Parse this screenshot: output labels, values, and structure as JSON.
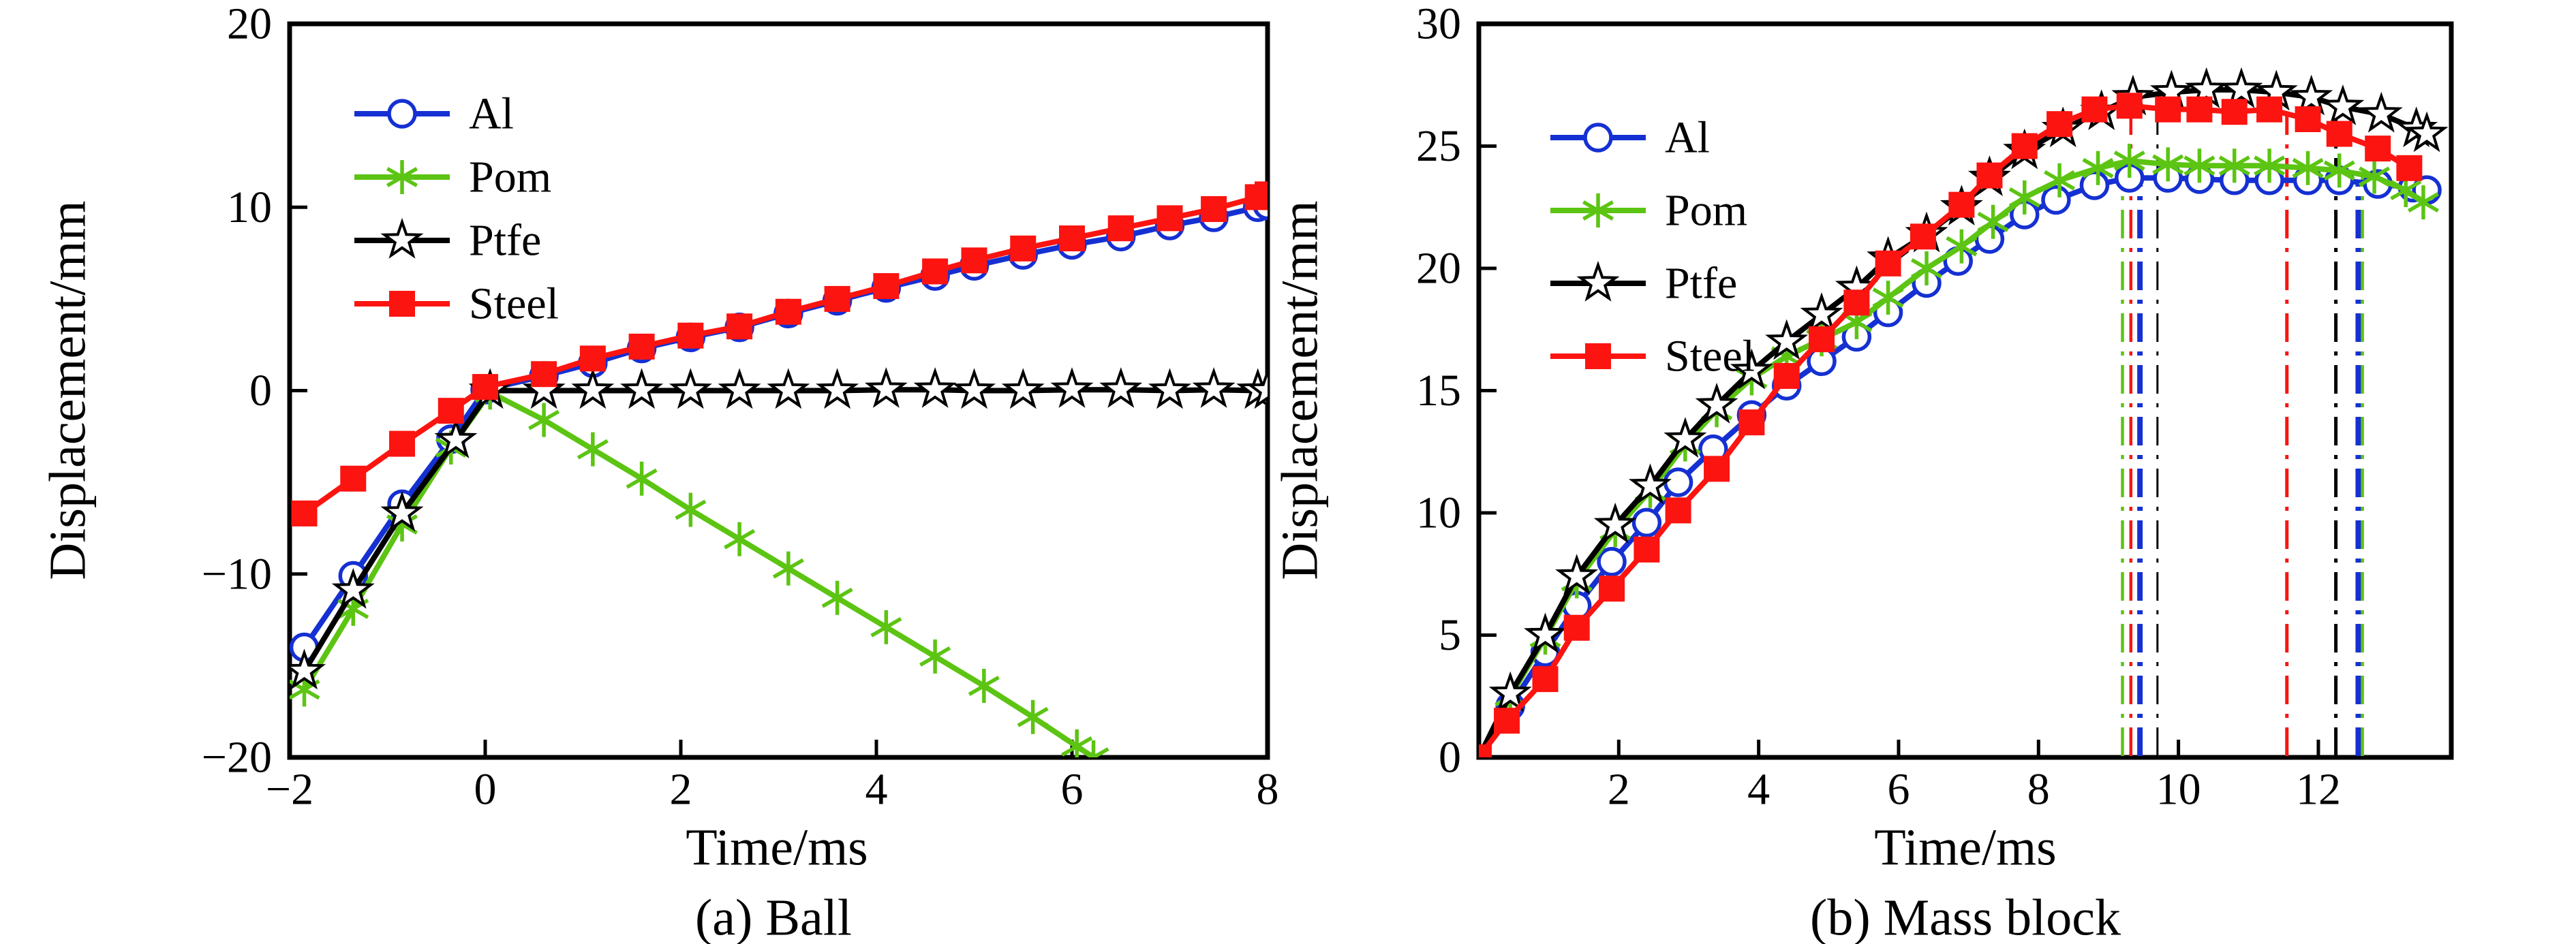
{
  "figure": {
    "panel_a": {
      "caption": "(a) Ball",
      "xlabel": "Time/ms",
      "ylabel": "Displacement/mm"
    },
    "panel_b": {
      "caption": "(b) Mass block",
      "xlabel": "Time/ms",
      "ylabel": "Displacement/mm"
    }
  },
  "colors": {
    "al": "#1530d2",
    "pom": "#5cc412",
    "ptfe": "#000000",
    "steel": "#fb1410"
  },
  "chart_data": [
    {
      "id": "ball",
      "type": "line",
      "title": "(a) Ball",
      "xlabel": "Time/ms",
      "ylabel": "Displacement/mm",
      "xlim": [
        -2,
        8
      ],
      "ylim": [
        -20,
        20
      ],
      "xticks": [
        -2,
        0,
        2,
        4,
        6,
        8
      ],
      "yticks": [
        -20,
        -10,
        0,
        10,
        20
      ],
      "grid": false,
      "legend_position": "upper-left",
      "series": [
        {
          "name": "Al",
          "color": "#1530d2",
          "marker": "circle-open",
          "points": [
            [
              -1.85,
              -14
            ],
            [
              -1.35,
              -10.1
            ],
            [
              -0.85,
              -6.2
            ],
            [
              -0.35,
              -2.65
            ],
            [
              0,
              0.05
            ],
            [
              0.6,
              0.8
            ],
            [
              1.1,
              1.5
            ],
            [
              1.6,
              2.3
            ],
            [
              2.1,
              2.9
            ],
            [
              2.6,
              3.45
            ],
            [
              3.1,
              4.2
            ],
            [
              3.6,
              4.9
            ],
            [
              4.1,
              5.6
            ],
            [
              4.6,
              6.25
            ],
            [
              5,
              6.8
            ],
            [
              5.5,
              7.4
            ],
            [
              6,
              7.95
            ],
            [
              6.5,
              8.4
            ],
            [
              7,
              9
            ],
            [
              7.45,
              9.45
            ],
            [
              7.9,
              10
            ],
            [
              8,
              10.1
            ]
          ]
        },
        {
          "name": "Pom",
          "color": "#5cc412",
          "marker": "asterisk",
          "points": [
            [
              -1.85,
              -16.3
            ],
            [
              -1.35,
              -11.9
            ],
            [
              -0.85,
              -7.3
            ],
            [
              -0.35,
              -3.1
            ],
            [
              0.05,
              -0.1
            ],
            [
              0.6,
              -1.6
            ],
            [
              1.1,
              -3.2
            ],
            [
              1.6,
              -4.8
            ],
            [
              2.1,
              -6.5
            ],
            [
              2.6,
              -8.1
            ],
            [
              3.1,
              -9.7
            ],
            [
              3.6,
              -11.3
            ],
            [
              4.1,
              -12.9
            ],
            [
              4.6,
              -14.5
            ],
            [
              5.1,
              -16.1
            ],
            [
              5.6,
              -17.8
            ],
            [
              6.05,
              -19.4
            ],
            [
              6.22,
              -20
            ]
          ]
        },
        {
          "name": "Ptfe",
          "color": "#000000",
          "marker": "star-open",
          "points": [
            [
              -1.85,
              -15.3
            ],
            [
              -1.35,
              -10.9
            ],
            [
              -0.85,
              -6.7
            ],
            [
              -0.3,
              -2.7
            ],
            [
              0.05,
              0
            ],
            [
              0.6,
              0
            ],
            [
              1.1,
              0
            ],
            [
              1.6,
              0
            ],
            [
              2.1,
              0
            ],
            [
              2.6,
              0
            ],
            [
              3.1,
              0
            ],
            [
              3.6,
              0
            ],
            [
              4.1,
              0.05
            ],
            [
              4.6,
              0.05
            ],
            [
              5,
              0
            ],
            [
              5.5,
              0
            ],
            [
              6,
              0.05
            ],
            [
              6.5,
              0.05
            ],
            [
              7,
              0
            ],
            [
              7.45,
              0.05
            ],
            [
              7.9,
              0
            ],
            [
              8,
              0
            ]
          ]
        },
        {
          "name": "Steel",
          "color": "#fb1410",
          "marker": "square-filled",
          "points": [
            [
              -1.85,
              -6.7
            ],
            [
              -1.35,
              -4.8
            ],
            [
              -0.85,
              -2.9
            ],
            [
              -0.35,
              -1.1
            ],
            [
              0,
              0.2
            ],
            [
              0.6,
              0.9
            ],
            [
              1.1,
              1.75
            ],
            [
              1.6,
              2.4
            ],
            [
              2.1,
              3
            ],
            [
              2.6,
              3.5
            ],
            [
              3.1,
              4.3
            ],
            [
              3.6,
              5
            ],
            [
              4.1,
              5.7
            ],
            [
              4.6,
              6.5
            ],
            [
              5,
              7.1
            ],
            [
              5.5,
              7.75
            ],
            [
              6,
              8.3
            ],
            [
              6.5,
              8.85
            ],
            [
              7,
              9.4
            ],
            [
              7.45,
              9.9
            ],
            [
              7.9,
              10.55
            ],
            [
              8,
              10.7
            ]
          ]
        }
      ]
    },
    {
      "id": "mass-block",
      "type": "line",
      "title": "(b) Mass block",
      "xlabel": "Time/ms",
      "ylabel": "Displacement/mm",
      "xlim": [
        0,
        13.9
      ],
      "ylim": [
        0,
        30
      ],
      "xticks": [
        2,
        4,
        6,
        8,
        10,
        12
      ],
      "yticks": [
        0,
        5,
        10,
        15,
        20,
        25,
        30
      ],
      "grid": false,
      "legend_position": "upper-left",
      "series": [
        {
          "name": "Al",
          "color": "#1530d2",
          "marker": "circle-open",
          "skip_first_marker": true,
          "points": [
            [
              0,
              0
            ],
            [
              0.45,
              2.1
            ],
            [
              0.95,
              4.3
            ],
            [
              1.4,
              6.2
            ],
            [
              1.9,
              8
            ],
            [
              2.4,
              9.6
            ],
            [
              2.85,
              11.25
            ],
            [
              3.35,
              12.6
            ],
            [
              3.9,
              14
            ],
            [
              4.4,
              15.2
            ],
            [
              4.9,
              16.2
            ],
            [
              5.4,
              17.2
            ],
            [
              5.85,
              18.2
            ],
            [
              6.4,
              19.4
            ],
            [
              6.85,
              20.3
            ],
            [
              7.3,
              21.2
            ],
            [
              7.8,
              22.2
            ],
            [
              8.25,
              22.8
            ],
            [
              8.8,
              23.4
            ],
            [
              9.3,
              23.7
            ],
            [
              9.85,
              23.7
            ],
            [
              10.3,
              23.65
            ],
            [
              10.8,
              23.6
            ],
            [
              11.3,
              23.6
            ],
            [
              11.85,
              23.6
            ],
            [
              12.3,
              23.6
            ],
            [
              12.85,
              23.45
            ],
            [
              13.35,
              23.3
            ],
            [
              13.55,
              23.2
            ]
          ]
        },
        {
          "name": "Pom",
          "color": "#5cc412",
          "marker": "asterisk",
          "skip_first_marker": true,
          "points": [
            [
              0,
              0
            ],
            [
              0.45,
              2.5
            ],
            [
              0.95,
              4.9
            ],
            [
              1.4,
              7.2
            ],
            [
              1.95,
              9.3
            ],
            [
              2.45,
              10.9
            ],
            [
              2.95,
              12.8
            ],
            [
              3.4,
              14.2
            ],
            [
              3.9,
              15.5
            ],
            [
              4.4,
              16.4
            ],
            [
              4.9,
              17.1
            ],
            [
              5.4,
              17.8
            ],
            [
              5.85,
              18.8
            ],
            [
              6.4,
              20
            ],
            [
              6.9,
              20.9
            ],
            [
              7.35,
              21.9
            ],
            [
              7.8,
              22.9
            ],
            [
              8.3,
              23.6
            ],
            [
              8.85,
              24.1
            ],
            [
              9.3,
              24.4
            ],
            [
              9.85,
              24.25
            ],
            [
              10.3,
              24.2
            ],
            [
              10.8,
              24.2
            ],
            [
              11.3,
              24.2
            ],
            [
              11.85,
              24.1
            ],
            [
              12.3,
              24
            ],
            [
              12.8,
              23.75
            ],
            [
              13.25,
              23.2
            ],
            [
              13.5,
              22.7
            ]
          ]
        },
        {
          "name": "Ptfe",
          "color": "#000000",
          "marker": "star-open",
          "skip_first_marker": true,
          "points": [
            [
              0,
              0
            ],
            [
              0.45,
              2.6
            ],
            [
              0.95,
              5
            ],
            [
              1.4,
              7.4
            ],
            [
              1.95,
              9.5
            ],
            [
              2.45,
              11.1
            ],
            [
              2.95,
              13
            ],
            [
              3.4,
              14.4
            ],
            [
              3.9,
              15.8
            ],
            [
              4.4,
              17
            ],
            [
              4.9,
              18.1
            ],
            [
              5.4,
              19.2
            ],
            [
              5.85,
              20.4
            ],
            [
              6.4,
              21.4
            ],
            [
              6.9,
              22.5
            ],
            [
              7.3,
              23.7
            ],
            [
              7.8,
              24.8
            ],
            [
              8.35,
              25.7
            ],
            [
              8.9,
              26.4
            ],
            [
              9.35,
              27
            ],
            [
              9.9,
              27.2
            ],
            [
              10.4,
              27.3
            ],
            [
              10.9,
              27.3
            ],
            [
              11.4,
              27.2
            ],
            [
              11.9,
              27
            ],
            [
              12.35,
              26.6
            ],
            [
              12.9,
              26.3
            ],
            [
              13.4,
              25.7
            ],
            [
              13.55,
              25.5
            ]
          ]
        },
        {
          "name": "Steel",
          "color": "#fb1410",
          "marker": "square-filled",
          "points": [
            [
              0,
              0
            ],
            [
              0.4,
              1.5
            ],
            [
              0.95,
              3.2
            ],
            [
              1.4,
              5.3
            ],
            [
              1.9,
              6.9
            ],
            [
              2.4,
              8.5
            ],
            [
              2.85,
              10.1
            ],
            [
              3.4,
              11.8
            ],
            [
              3.9,
              13.7
            ],
            [
              4.4,
              15.6
            ],
            [
              4.9,
              17.1
            ],
            [
              5.4,
              18.6
            ],
            [
              5.85,
              20.2
            ],
            [
              6.35,
              21.3
            ],
            [
              6.9,
              22.6
            ],
            [
              7.3,
              23.8
            ],
            [
              7.8,
              25
            ],
            [
              8.3,
              25.9
            ],
            [
              8.8,
              26.5
            ],
            [
              9.3,
              26.65
            ],
            [
              9.85,
              26.5
            ],
            [
              10.3,
              26.5
            ],
            [
              10.8,
              26.4
            ],
            [
              11.3,
              26.5
            ],
            [
              11.85,
              26.1
            ],
            [
              12.3,
              25.5
            ],
            [
              12.85,
              24.9
            ],
            [
              13.3,
              24.1
            ]
          ]
        }
      ],
      "vlines": [
        {
          "x": 9.2,
          "top": 24.4,
          "color": "#5cc412",
          "width": 4.5
        },
        {
          "x": 9.32,
          "top": 26.6,
          "color": "#fb1410",
          "width": 4.5
        },
        {
          "x": 9.45,
          "top": 23.75,
          "color": "#1530d2",
          "width": 8
        },
        {
          "x": 9.7,
          "top": 27.2,
          "color": "#000000",
          "width": 3
        },
        {
          "x": 11.55,
          "top": 26.3,
          "color": "#fb1410",
          "width": 5
        },
        {
          "x": 12.25,
          "top": 26.7,
          "color": "#000000",
          "width": 5
        },
        {
          "x": 12.57,
          "top": 23.6,
          "color": "#1530d2",
          "width": 8
        },
        {
          "x": 12.63,
          "top": 23.9,
          "color": "#5cc412",
          "width": 4.5
        }
      ]
    }
  ]
}
